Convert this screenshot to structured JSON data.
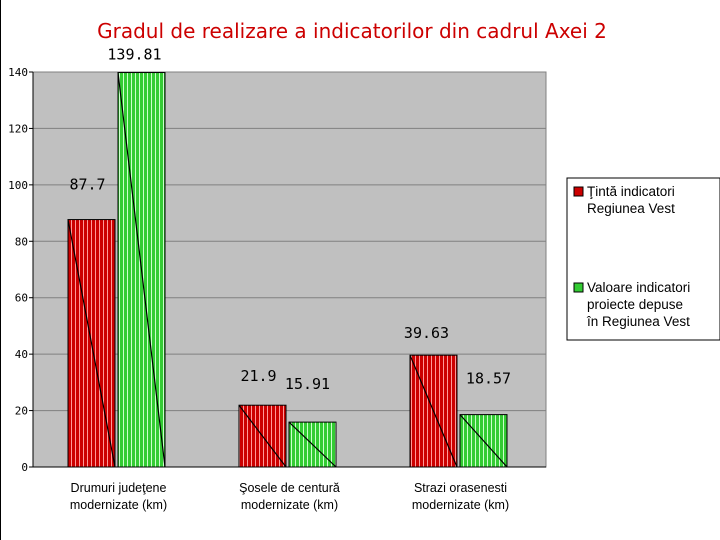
{
  "chart_data": {
    "type": "bar",
    "title": "Gradul de realizare a indicatorilor din cadrul Axei 2",
    "categories": [
      [
        "Drumuri judeţene",
        "modernizate (km)"
      ],
      [
        "Şosele de centură",
        "modernizate (km)"
      ],
      [
        "Strazi orasenesti",
        "modernizate (km)"
      ]
    ],
    "series": [
      {
        "name": [
          "Ţintă indicatori",
          "Regiunea Vest"
        ],
        "values": [
          87.7,
          21.9,
          39.63
        ],
        "labels": [
          "87.7",
          "21.9",
          "39.63"
        ],
        "color": "#cc0000"
      },
      {
        "name": [
          "Valoare indicatori",
          "proiecte depuse",
          "în Regiunea Vest"
        ],
        "values": [
          139.81,
          15.91,
          18.57
        ],
        "labels": [
          "139.81",
          "15.91",
          "18.57"
        ],
        "color": "#33cc33"
      }
    ],
    "ylim": [
      0,
      140
    ],
    "yticks": [
      "0",
      "20",
      "40",
      "60",
      "80",
      "100",
      "120",
      "140"
    ],
    "grid": true,
    "legend": "right",
    "plot_background": "#c0c0c0"
  }
}
